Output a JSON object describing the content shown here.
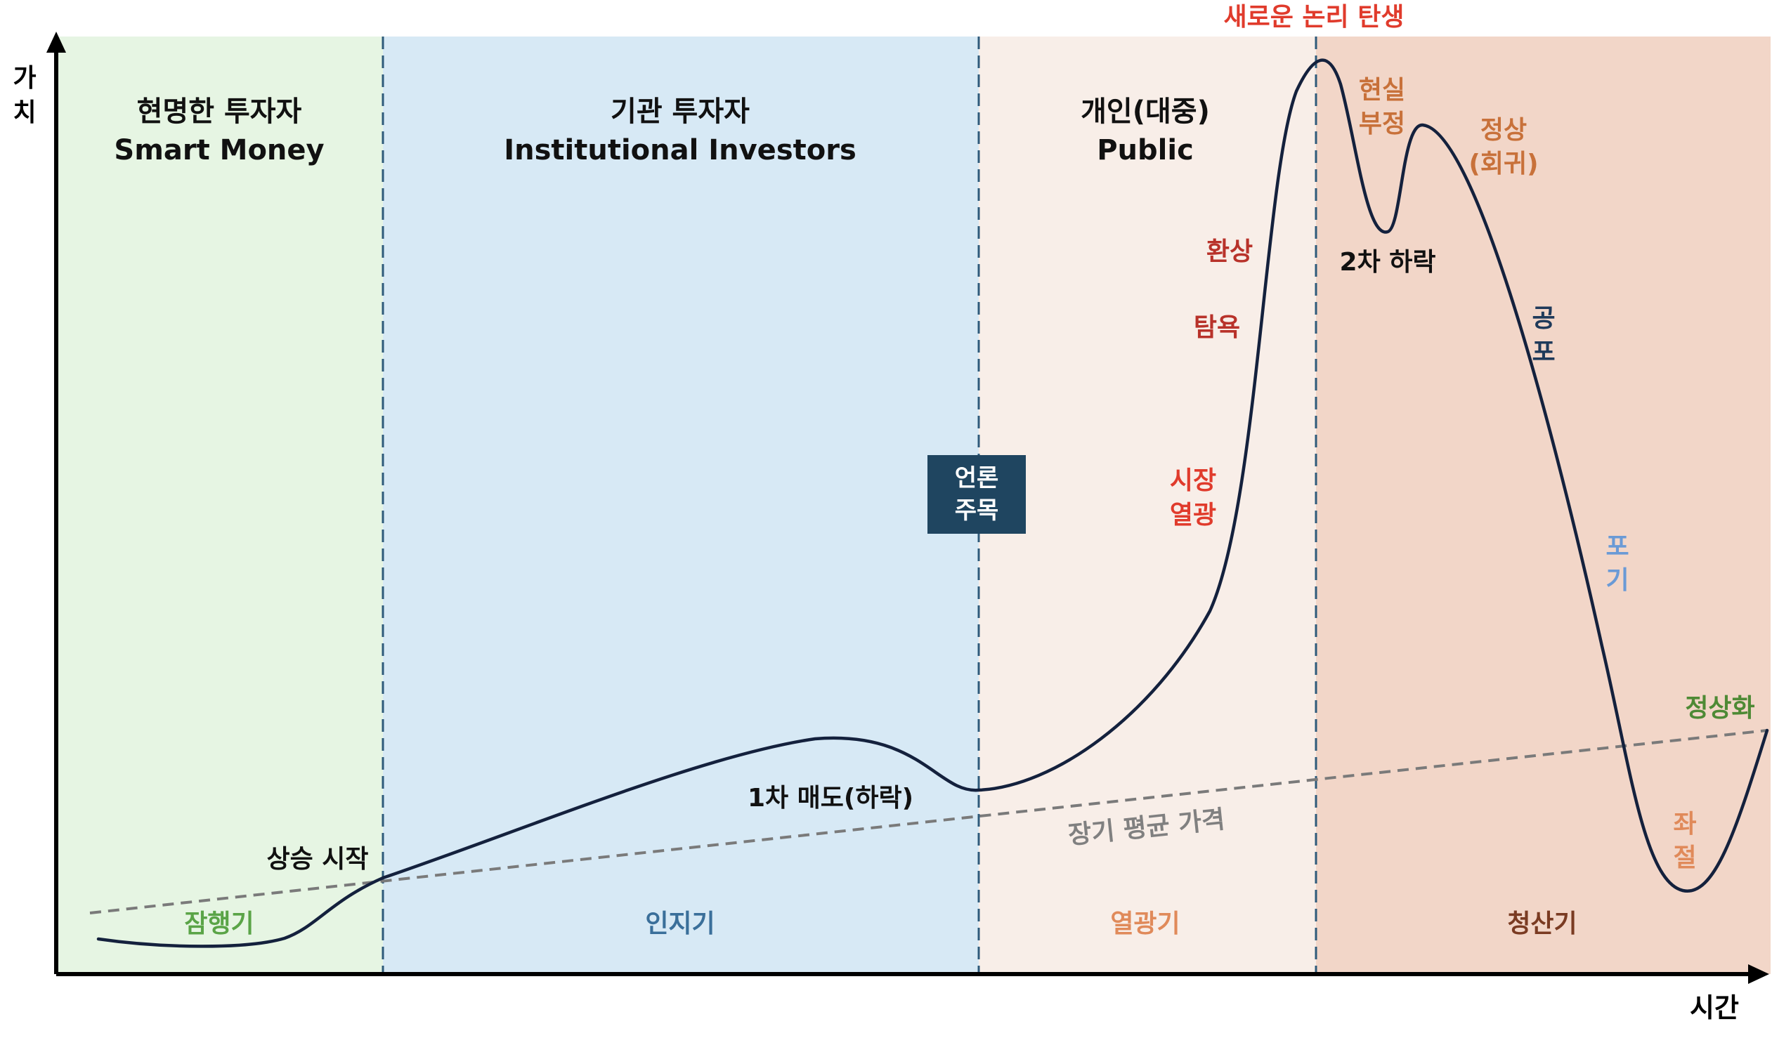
{
  "axes": {
    "y_label_1": "가",
    "y_label_2": "치",
    "x_label": "시간"
  },
  "phases": [
    {
      "title_ko": "현명한 투자자",
      "title_en": "Smart Money",
      "stage": "잠행기",
      "fill": "#e6f5e3",
      "stage_color": "#5aa447"
    },
    {
      "title_ko": "기관 투자자",
      "title_en": "Institutional Investors",
      "stage": "인지기",
      "fill": "#d7e9f5",
      "stage_color": "#3a6f9a"
    },
    {
      "title_ko": "개인(대중)",
      "title_en": "Public",
      "stage": "열광기",
      "fill": "#f8eee8",
      "stage_color": "#e08a5a"
    },
    {
      "title_ko": "",
      "title_en": "",
      "stage": "청산기",
      "fill": "#f2d6c8",
      "stage_color": "#7a3b22"
    }
  ],
  "top_annotation": "새로운 논리 탄생",
  "media_box": {
    "line1": "언론",
    "line2": "주목",
    "fill": "#1f4560"
  },
  "labels": {
    "rise_start": "상승 시작",
    "first_sell": "1차 매도(하락)",
    "long_term_avg": "장기 평균 가격",
    "market_frenzy_1": "시장",
    "market_frenzy_2": "열광",
    "greed": "탐욕",
    "illusion": "환상",
    "reality_denial_1": "현실",
    "reality_denial_2": "부정",
    "normal_return_1": "정상",
    "normal_return_2": "(회귀)",
    "second_drop": "2차 하락",
    "fear_1": "공",
    "fear_2": "포",
    "give_up_1": "포",
    "give_up_2": "기",
    "frustration_1": "좌",
    "frustration_2": "절",
    "normalization": "정상화"
  },
  "colors": {
    "curve": "#14213d",
    "axis": "#000000",
    "divider": "#2e5a7a",
    "avg_line": "#7a7a7a",
    "red": "#e03b2c",
    "dark_red": "#b8322a",
    "orange": "#c8713a",
    "navy": "#1f3a5a",
    "blue_light": "#6a9ad6",
    "green": "#4e8a35"
  }
}
